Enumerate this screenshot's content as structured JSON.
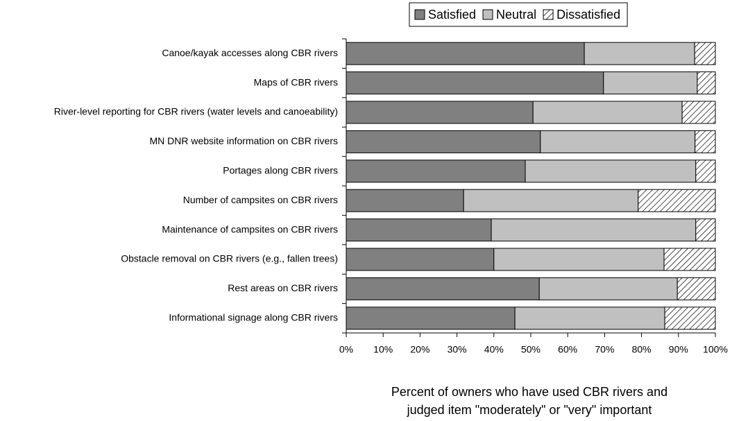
{
  "chart_data": {
    "type": "stacked-barh",
    "categories": [
      "Canoe/kayak accesses along CBR rivers",
      "Maps of CBR rivers",
      "River-level reporting for CBR rivers (water levels and canoeability)",
      "MN DNR website information on CBR rivers",
      "Portages along CBR rivers",
      "Number of campsites on CBR rivers",
      "Maintenance of campsites on CBR rivers",
      "Obstacle removal on CBR rivers (e.g., fallen trees)",
      "Rest areas on CBR rivers",
      "Informational signage along CBR rivers"
    ],
    "series": [
      {
        "name": "Satisfied",
        "color": "#808080",
        "values": [
          64.5,
          69.7,
          50.6,
          52.6,
          48.5,
          31.8,
          39.3,
          40.0,
          52.3,
          45.7
        ]
      },
      {
        "name": "Neutral",
        "color": "#c0c0c0",
        "values": [
          29.9,
          25.4,
          40.4,
          41.9,
          46.2,
          47.3,
          55.4,
          46.1,
          37.4,
          40.6
        ]
      },
      {
        "name": "Dissatisfied",
        "color": "#000000",
        "pattern": "diagonal-hatch",
        "values": [
          5.6,
          4.9,
          9.0,
          5.5,
          5.3,
          20.9,
          5.3,
          13.9,
          10.3,
          13.7
        ]
      }
    ],
    "xlim": [
      0,
      100
    ],
    "xticks": [
      {
        "value": 0,
        "label": "0%"
      },
      {
        "value": 10,
        "label": "10%"
      },
      {
        "value": 20,
        "label": "20%"
      },
      {
        "value": 30,
        "label": "30%"
      },
      {
        "value": 40,
        "label": "40%"
      },
      {
        "value": 50,
        "label": "50%"
      },
      {
        "value": 60,
        "label": "60%"
      },
      {
        "value": 70,
        "label": "70%"
      },
      {
        "value": 80,
        "label": "80%"
      },
      {
        "value": 90,
        "label": "90%"
      },
      {
        "value": 100,
        "label": "100%"
      }
    ],
    "xlabel": [
      "Percent of owners who have used CBR rivers and",
      "judged item \"moderately\" or \"very\" important"
    ],
    "legend": "top"
  }
}
